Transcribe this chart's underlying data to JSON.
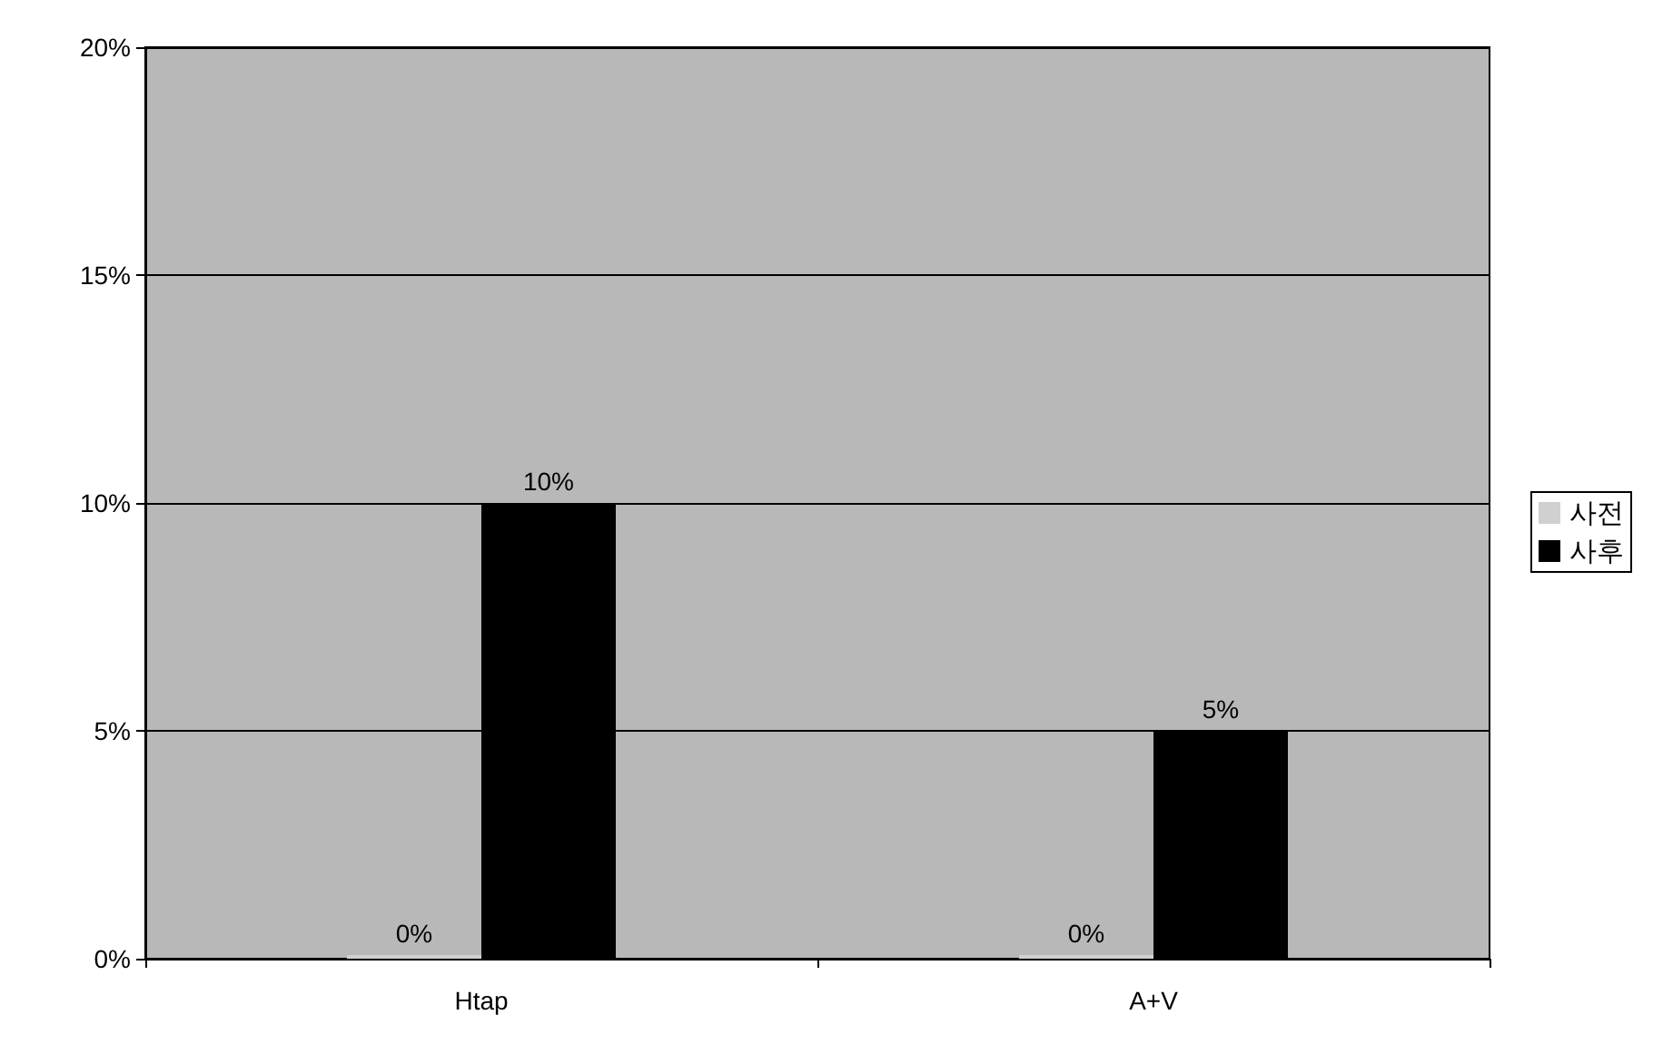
{
  "chart_data": {
    "type": "bar",
    "categories": [
      "Htap",
      "A+V"
    ],
    "series": [
      {
        "name": "사전",
        "color": "#d0d0d0",
        "values": [
          0,
          0
        ],
        "value_labels": [
          "0%",
          "0%"
        ]
      },
      {
        "name": "사후",
        "color": "#000000",
        "values": [
          10,
          5
        ],
        "value_labels": [
          "10%",
          "5%"
        ]
      }
    ],
    "ylim": [
      0,
      20
    ],
    "yticks": [
      {
        "value": 0,
        "label": "0%"
      },
      {
        "value": 5,
        "label": "5%"
      },
      {
        "value": 10,
        "label": "10%"
      },
      {
        "value": 15,
        "label": "15%"
      },
      {
        "value": 20,
        "label": "20%"
      }
    ],
    "grid": "y",
    "legend": "right"
  }
}
